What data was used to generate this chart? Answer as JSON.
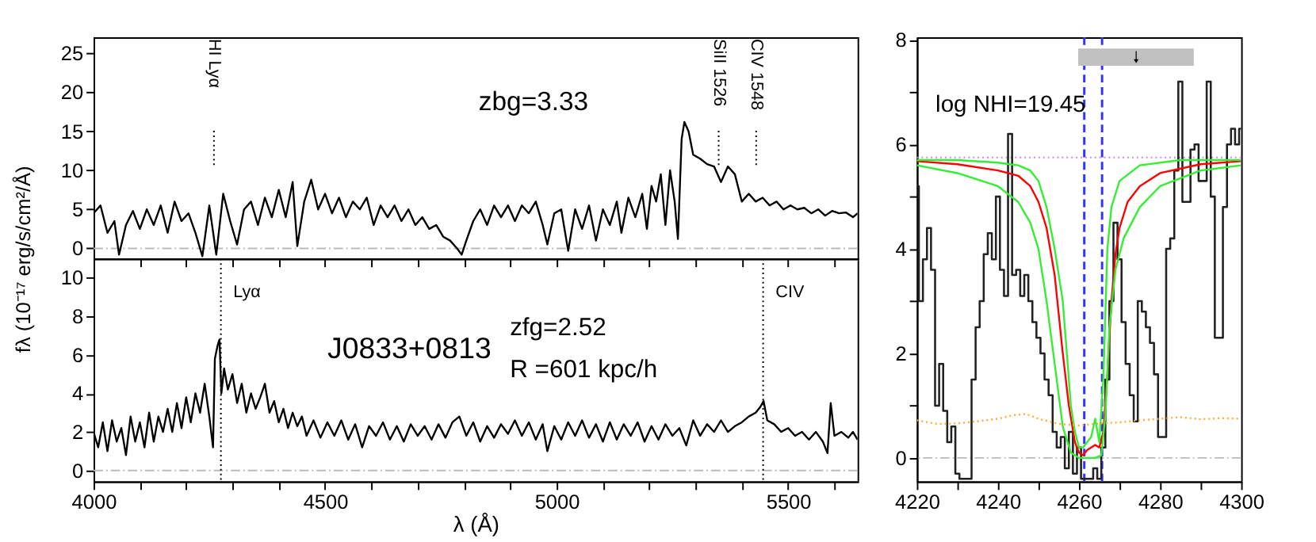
{
  "chart_data": [
    {
      "type": "line",
      "xlim": [
        4000,
        5650
      ],
      "ylim": [
        -1.3,
        27.05
      ],
      "tick_labels": "y",
      "xticks": [
        4000,
        {
          "value": 4100,
          "label": null
        },
        {
          "value": 4200,
          "label": null
        },
        {
          "value": 4300,
          "label": null
        },
        {
          "value": 4400,
          "label": null
        },
        4500,
        {
          "value": 4600,
          "label": null
        },
        {
          "value": 4700,
          "label": null
        },
        {
          "value": 4800,
          "label": null
        },
        {
          "value": 4900,
          "label": null
        },
        5000,
        {
          "value": 5100,
          "label": null
        },
        {
          "value": 5200,
          "label": null
        },
        {
          "value": 5300,
          "label": null
        },
        {
          "value": 5400,
          "label": null
        },
        5500,
        {
          "value": 5600,
          "label": null
        }
      ],
      "yticks": [
        0,
        5,
        10,
        15,
        20,
        25
      ],
      "series": [
        {
          "color": "#000000",
          "x": [
            4000,
            4015,
            4030,
            4045,
            4055,
            4070,
            4085,
            4100,
            4115,
            4130,
            4145,
            4160,
            4175,
            4190,
            4205,
            4220,
            4235,
            4250,
            4265,
            4280,
            4295,
            4310,
            4325,
            4340,
            4355,
            4370,
            4385,
            4400,
            4415,
            4430,
            4440,
            4455,
            4470,
            4485,
            4500,
            4515,
            4530,
            4545,
            4560,
            4575,
            4590,
            4605,
            4620,
            4635,
            4650,
            4665,
            4680,
            4695,
            4710,
            4725,
            4740,
            4755,
            4770,
            4785,
            4795,
            4805,
            4820,
            4835,
            4850,
            4865,
            4880,
            4895,
            4910,
            4925,
            4940,
            4955,
            4970,
            4980,
            4995,
            5010,
            5025,
            5040,
            5055,
            5070,
            5085,
            5100,
            5115,
            5130,
            5140,
            5155,
            5170,
            5185,
            5195,
            5205,
            5215,
            5225,
            5235,
            5245,
            5255,
            5262,
            5270,
            5276,
            5285,
            5295,
            5310,
            5325,
            5340,
            5355,
            5370,
            5385,
            5400,
            5415,
            5430,
            5445,
            5460,
            5475,
            5490,
            5505,
            5520,
            5535,
            5550,
            5565,
            5580,
            5595,
            5610,
            5625,
            5640,
            5650
          ],
          "values": [
            4.5,
            5.5,
            2.0,
            3.5,
            -0.8,
            3.0,
            4.8,
            2.5,
            5.0,
            3.0,
            5.5,
            2.0,
            6.0,
            3.5,
            4.5,
            2.0,
            -1.0,
            5.5,
            -0.8,
            7.0,
            3.5,
            0.5,
            5.0,
            6.0,
            3.0,
            6.5,
            4.0,
            7.5,
            4.0,
            8.5,
            0.3,
            6.0,
            8.8,
            5.0,
            7.0,
            4.5,
            6.5,
            4.0,
            6.0,
            5.0,
            6.5,
            3.0,
            5.5,
            4.0,
            5.5,
            3.5,
            5.0,
            3.0,
            4.0,
            2.5,
            3.0,
            1.5,
            1.0,
            0.0,
            -0.8,
            1.0,
            3.5,
            5.0,
            3.0,
            5.5,
            4.0,
            5.5,
            3.5,
            5.5,
            4.5,
            6.0,
            3.0,
            0.5,
            4.5,
            5.0,
            -0.3,
            5.0,
            2.5,
            5.5,
            1.0,
            5.0,
            3.0,
            6.0,
            2.0,
            6.5,
            4.0,
            7.0,
            2.5,
            8.0,
            6.0,
            9.5,
            3.0,
            10.0,
            6.0,
            1.2,
            14.0,
            16.2,
            15.0,
            12.0,
            11.5,
            10.8,
            10.5,
            8.5,
            10.5,
            9.5,
            6.0,
            7.0,
            6.0,
            6.5,
            5.5,
            6.0,
            5.0,
            5.5,
            5.0,
            5.2,
            4.5,
            5.0,
            4.2,
            4.8,
            4.5,
            4.6,
            4.0,
            4.5
          ]
        }
      ],
      "ref_lines": [
        {
          "axis": "y",
          "value": 0,
          "color": "#bbbbbb",
          "line_style": "dashdot"
        },
        {
          "axis": "x",
          "value": 4260,
          "label": "HI  Lyα",
          "color": "#000000",
          "line_style": "dotted"
        },
        {
          "axis": "x",
          "value": 5350,
          "label": "SiII 1526",
          "color": "#000000",
          "line_style": "dotted"
        },
        {
          "axis": "x",
          "value": 5431,
          "label": "CIV 1548",
          "color": "#000000",
          "line_style": "dotted"
        }
      ],
      "annotations": [
        "zbg=3.33"
      ]
    },
    {
      "type": "line",
      "xlim": [
        4000,
        5650
      ],
      "ylim": [
        -0.57,
        11.0
      ],
      "xlabel": "λ  (Å)",
      "ylabel": "fλ  (10⁻¹⁷ erg/s/cm²/Å)",
      "xticks": [
        4000,
        {
          "value": 4100,
          "label": null
        },
        {
          "value": 4200,
          "label": null
        },
        {
          "value": 4300,
          "label": null
        },
        {
          "value": 4400,
          "label": null
        },
        4500,
        {
          "value": 4600,
          "label": null
        },
        {
          "value": 4700,
          "label": null
        },
        {
          "value": 4800,
          "label": null
        },
        {
          "value": 4900,
          "label": null
        },
        5000,
        {
          "value": 5100,
          "label": null
        },
        {
          "value": 5200,
          "label": null
        },
        {
          "value": 5300,
          "label": null
        },
        {
          "value": 5400,
          "label": null
        },
        5500,
        {
          "value": 5600,
          "label": null
        }
      ],
      "yticks": [
        0,
        2,
        4,
        6,
        8,
        10
      ],
      "series": [
        {
          "color": "#000000",
          "x": [
            4000,
            4010,
            4020,
            4030,
            4040,
            4050,
            4060,
            4070,
            4080,
            4090,
            4100,
            4110,
            4120,
            4130,
            4140,
            4150,
            4160,
            4170,
            4180,
            4190,
            4200,
            4210,
            4220,
            4230,
            4240,
            4250,
            4258,
            4262,
            4268,
            4272,
            4276,
            4282,
            4290,
            4300,
            4310,
            4320,
            4330,
            4340,
            4350,
            4360,
            4370,
            4380,
            4390,
            4400,
            4410,
            4420,
            4430,
            4440,
            4450,
            4460,
            4475,
            4490,
            4505,
            4520,
            4535,
            4550,
            4565,
            4580,
            4595,
            4610,
            4625,
            4640,
            4655,
            4670,
            4685,
            4700,
            4715,
            4730,
            4745,
            4760,
            4775,
            4790,
            4805,
            4820,
            4835,
            4850,
            4865,
            4880,
            4895,
            4910,
            4925,
            4940,
            4955,
            4970,
            4980,
            4995,
            5010,
            5025,
            5040,
            5055,
            5070,
            5085,
            5100,
            5115,
            5130,
            5145,
            5160,
            5175,
            5190,
            5205,
            5220,
            5235,
            5250,
            5265,
            5280,
            5295,
            5310,
            5325,
            5340,
            5355,
            5370,
            5385,
            5400,
            5415,
            5430,
            5440,
            5447,
            5455,
            5470,
            5485,
            5500,
            5515,
            5530,
            5545,
            5560,
            5575,
            5585,
            5592,
            5600,
            5615,
            5630,
            5640,
            5650
          ],
          "values": [
            2.0,
            1.2,
            2.5,
            1.0,
            2.6,
            1.5,
            2.2,
            0.8,
            2.8,
            1.5,
            2.5,
            1.2,
            3.0,
            1.5,
            2.8,
            2.0,
            3.2,
            2.0,
            3.5,
            2.2,
            3.8,
            2.5,
            4.0,
            3.0,
            4.5,
            2.8,
            1.2,
            5.8,
            6.5,
            6.8,
            4.0,
            5.3,
            4.2,
            5.0,
            3.5,
            4.5,
            3.0,
            4.0,
            3.2,
            3.8,
            4.5,
            3.0,
            3.6,
            2.5,
            3.2,
            2.2,
            3.0,
            2.3,
            2.8,
            1.8,
            2.6,
            1.7,
            2.5,
            1.8,
            2.6,
            1.6,
            2.4,
            1.2,
            2.3,
            1.8,
            2.5,
            1.6,
            2.3,
            1.5,
            2.4,
            1.8,
            2.3,
            1.6,
            2.4,
            1.7,
            2.5,
            2.8,
            1.8,
            2.5,
            1.5,
            2.3,
            1.7,
            2.4,
            1.9,
            2.6,
            1.8,
            2.5,
            1.6,
            2.4,
            1.0,
            2.3,
            1.6,
            2.5,
            1.8,
            2.6,
            1.7,
            2.4,
            1.5,
            2.5,
            1.6,
            2.4,
            1.8,
            2.5,
            1.5,
            2.3,
            1.6,
            2.4,
            1.8,
            2.2,
            1.3,
            2.6,
            1.8,
            2.4,
            2.0,
            2.6,
            2.0,
            2.3,
            2.5,
            2.8,
            3.0,
            3.3,
            3.6,
            2.6,
            2.4,
            2.0,
            2.2,
            1.8,
            2.0,
            1.6,
            2.0,
            1.5,
            0.9,
            3.5,
            1.8,
            2.0,
            1.7,
            2.0,
            1.6
          ]
        }
      ],
      "ref_lines": [
        {
          "axis": "y",
          "value": 0,
          "color": "#bbbbbb",
          "line_style": "dashdot"
        },
        {
          "axis": "x",
          "value": 4275,
          "label": "Lyα",
          "color": "#000000",
          "line_style": "dotted"
        },
        {
          "axis": "x",
          "value": 5446,
          "label": "CIV",
          "color": "#000000",
          "line_style": "dotted"
        }
      ],
      "annotations": [
        "J0833+0813",
        "zfg=2.52",
        "R =601 kpc/h"
      ]
    },
    {
      "type": "line",
      "xlim": [
        4220,
        4300
      ],
      "ylim": [
        -0.45,
        8.05
      ],
      "xticks": [
        4220,
        {
          "value": 4230,
          "label": null
        },
        4240,
        {
          "value": 4250,
          "label": null
        },
        4260,
        {
          "value": 4270,
          "label": null
        },
        4280,
        {
          "value": 4290,
          "label": null
        },
        4300
      ],
      "yticks": [
        0,
        {
          "value": 1,
          "label": null
        },
        2,
        {
          "value": 3,
          "label": null
        },
        4,
        {
          "value": 5,
          "label": null
        },
        6,
        {
          "value": 7,
          "label": null
        },
        8
      ],
      "series": [
        {
          "type": "step",
          "color": "#222222",
          "x": [
            4220,
            4221,
            4222,
            4223,
            4224,
            4225,
            4226,
            4227,
            4228,
            4229,
            4230,
            4231,
            4232,
            4233,
            4234,
            4235,
            4236,
            4237,
            4238,
            4239,
            4240,
            4241,
            4242,
            4243,
            4244,
            4245,
            4246,
            4247,
            4248,
            4249,
            4250,
            4251,
            4252,
            4253,
            4254,
            4255,
            4256,
            4257,
            4258,
            4259,
            4260,
            4261,
            4262,
            4263,
            4264,
            4265,
            4266,
            4267,
            4268,
            4269,
            4270,
            4271,
            4272,
            4273,
            4274,
            4275,
            4276,
            4277,
            4278,
            4279,
            4280,
            4281,
            4282,
            4283,
            4284,
            4285,
            4286,
            4287,
            4288,
            4289,
            4290,
            4291,
            4292,
            4293,
            4294,
            4295,
            4296,
            4297,
            4298,
            4299,
            4300
          ],
          "values": [
            5.2,
            3.0,
            3.8,
            4.4,
            3.6,
            1.0,
            1.8,
            0.9,
            0.3,
            0.6,
            -0.3,
            -0.4,
            -0.4,
            -0.4,
            1.5,
            2.5,
            3.0,
            3.9,
            4.3,
            3.8,
            5.0,
            3.6,
            3.1,
            6.2,
            3.5,
            3.6,
            3.1,
            3.5,
            3.0,
            2.6,
            2.3,
            2.0,
            1.5,
            1.2,
            0.5,
            0.2,
            0.4,
            -0.2,
            0.5,
            -0.3,
            0.2,
            -0.4,
            -0.4,
            -0.4,
            -0.2,
            -0.4,
            0.2,
            1.5,
            3.0,
            4.5,
            3.8,
            2.6,
            1.8,
            1.2,
            0.7,
            3.0,
            2.8,
            2.5,
            2.2,
            1.6,
            0.4,
            0.4,
            4.0,
            4.2,
            5.5,
            7.2,
            4.9,
            4.9,
            5.9,
            6.0,
            5.3,
            5.3,
            7.2,
            5.0,
            2.3,
            2.3,
            4.8,
            6.0,
            6.3,
            6.0,
            6.3
          ]
        },
        {
          "color": "#ff0000",
          "x": [
            4220,
            4230,
            4240,
            4245,
            4248,
            4250,
            4252,
            4254,
            4256,
            4257.5,
            4259,
            4260,
            4261,
            4262,
            4263,
            4264,
            4265,
            4266,
            4267,
            4268,
            4269,
            4270,
            4272,
            4275,
            4280,
            4290,
            4300
          ],
          "values": [
            5.68,
            5.62,
            5.5,
            5.4,
            5.2,
            4.9,
            4.4,
            3.5,
            2.0,
            1.0,
            0.3,
            0.1,
            0.05,
            0.15,
            0.2,
            0.25,
            0.2,
            0.5,
            1.6,
            3.0,
            3.9,
            4.4,
            4.9,
            5.2,
            5.45,
            5.62,
            5.68
          ]
        },
        {
          "color": "#33ee33",
          "x": [
            4220,
            4230,
            4240,
            4245,
            4248,
            4250,
            4252,
            4254,
            4256,
            4258,
            4260,
            4262,
            4264,
            4265.5,
            4266.5,
            4267.5,
            4269,
            4271,
            4275,
            4280,
            4290,
            4300
          ],
          "values": [
            5.6,
            5.45,
            5.2,
            4.9,
            4.5,
            4.0,
            3.0,
            1.8,
            0.6,
            0.1,
            0.0,
            0.0,
            0.0,
            0.05,
            0.8,
            2.5,
            3.6,
            4.2,
            4.8,
            5.2,
            5.5,
            5.6
          ]
        },
        {
          "color": "#33ee33",
          "x": [
            4220,
            4230,
            4240,
            4245,
            4248,
            4250,
            4252,
            4254,
            4256,
            4257,
            4258,
            4259,
            4260,
            4261,
            4262,
            4263,
            4264,
            4265,
            4266,
            4267,
            4268,
            4270,
            4275,
            4285,
            4300
          ],
          "values": [
            5.7,
            5.7,
            5.65,
            5.6,
            5.5,
            5.3,
            4.8,
            4.0,
            3.0,
            2.0,
            1.0,
            0.5,
            0.2,
            0.2,
            0.3,
            0.4,
            0.75,
            0.3,
            1.5,
            4.0,
            4.8,
            5.3,
            5.6,
            5.7,
            5.7
          ]
        },
        {
          "color": "#ffaa33",
          "line_style": "dotted",
          "x": [
            4220,
            4225,
            4230,
            4235,
            4240,
            4244,
            4247,
            4250,
            4255,
            4260,
            4265,
            4270,
            4275,
            4280,
            4285,
            4290,
            4295,
            4300
          ],
          "values": [
            0.72,
            0.65,
            0.66,
            0.7,
            0.75,
            0.82,
            0.84,
            0.75,
            0.65,
            0.62,
            0.66,
            0.68,
            0.72,
            0.75,
            0.78,
            0.74,
            0.76,
            0.75
          ]
        },
        {
          "type": "scatter",
          "color": "#000000",
          "x": [
            4274.1
          ],
          "values": [
            7.67
          ],
          "xerrors": [
            [
              4259.8,
              4288.3
            ]
          ]
        }
      ],
      "ref_lines": [
        {
          "axis": "y",
          "value": 0,
          "color": "#bbbbbb",
          "line_style": "dashdot"
        },
        {
          "axis": "y",
          "value": 5.75,
          "color": "#cc88ee",
          "line_style": "dotted"
        },
        {
          "axis": "x",
          "value": 4261.3,
          "color": "#3333ff",
          "line_style": "dashed"
        },
        {
          "axis": "x",
          "value": 4265.7,
          "color": "#3333ff",
          "line_style": "dashed"
        }
      ],
      "annotations": [
        "log NHI=19.45"
      ]
    }
  ]
}
